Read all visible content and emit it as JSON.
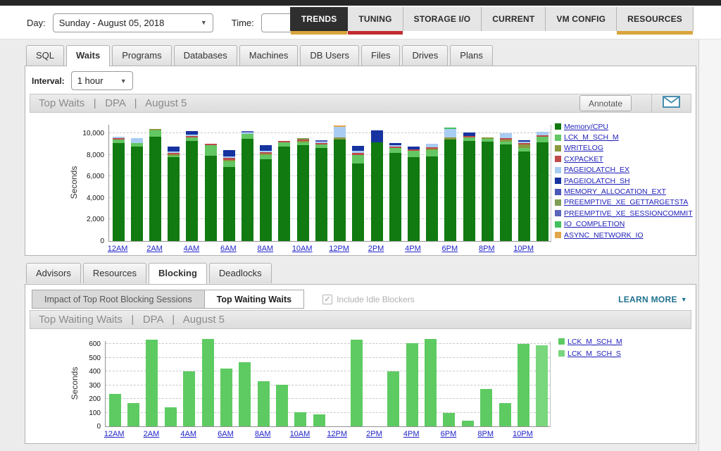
{
  "toolbar": {
    "day_label": "Day:",
    "day_value": "Sunday - August 05, 2018",
    "time_label": "Time:",
    "time_value": ""
  },
  "nav_tabs": [
    {
      "label": "TRENDS",
      "active": true,
      "underline": "#d9a43b"
    },
    {
      "label": "TUNING",
      "underline": "#c02b30"
    },
    {
      "label": "STORAGE I/O"
    },
    {
      "label": "CURRENT"
    },
    {
      "label": "VM CONFIG"
    },
    {
      "label": "RESOURCES",
      "underline": "#d9a43b"
    }
  ],
  "page_tabs": [
    {
      "label": "SQL"
    },
    {
      "label": "Waits",
      "active": true
    },
    {
      "label": "Programs"
    },
    {
      "label": "Databases"
    },
    {
      "label": "Machines"
    },
    {
      "label": "DB Users"
    },
    {
      "label": "Files"
    },
    {
      "label": "Drives"
    },
    {
      "label": "Plans"
    }
  ],
  "interval": {
    "label": "Interval:",
    "value": "1 hour"
  },
  "panel1": {
    "title": "Top Waits   |   DPA   |   August 5",
    "annotate_label": "Annotate",
    "mail_icon_color": "#4a8fb0"
  },
  "sub_tabs": [
    {
      "label": "Advisors"
    },
    {
      "label": "Resources"
    },
    {
      "label": "Blocking",
      "active": true
    },
    {
      "label": "Deadlocks"
    }
  ],
  "blocking_bar": {
    "toggle_buttons": [
      {
        "label": "Impact of Top Root Blocking Sessions"
      },
      {
        "label": "Top Waiting Waits",
        "active": true
      }
    ],
    "checkbox_label": "Include Idle Blockers",
    "checkbox_checked": true,
    "learn_more_label": "LEARN MORE"
  },
  "panel2": {
    "title": "Top Waiting Waits   |   DPA   |   August 5"
  },
  "chart_data": [
    {
      "type": "bar",
      "stacked": true,
      "title": "Top Waits | DPA | August 5",
      "ylabel": "Seconds",
      "ylim": [
        0,
        10800
      ],
      "yticks": [
        0,
        2000,
        4000,
        6000,
        8000,
        10000
      ],
      "grid": true,
      "legend_position": "right",
      "categories": [
        "12AM",
        "1AM",
        "2AM",
        "3AM",
        "4AM",
        "5AM",
        "6AM",
        "7AM",
        "8AM",
        "9AM",
        "10AM",
        "11AM",
        "12PM",
        "1PM",
        "2PM",
        "3PM",
        "4PM",
        "5PM",
        "6PM",
        "7PM",
        "8PM",
        "9PM",
        "10PM",
        "11PM"
      ],
      "tick_every": 2,
      "series": [
        {
          "name": "Memory/CPU",
          "color": "#117a11",
          "values": [
            9100,
            8750,
            9700,
            7750,
            9300,
            7900,
            6850,
            9500,
            7550,
            8750,
            8900,
            8650,
            9390,
            7200,
            9150,
            8200,
            7800,
            7850,
            9400,
            9300,
            9200,
            8950,
            8300,
            9150
          ]
        },
        {
          "name": "LCK_M_SCH_M",
          "color": "#63c763",
          "values": [
            300,
            300,
            600,
            150,
            350,
            1000,
            550,
            450,
            400,
            400,
            250,
            300,
            0,
            800,
            0,
            450,
            600,
            600,
            0,
            300,
            250,
            250,
            300,
            500
          ]
        },
        {
          "name": "WRITELOG",
          "color": "#8a9a40",
          "values": [
            0,
            0,
            150,
            100,
            0,
            0,
            100,
            0,
            100,
            0,
            100,
            0,
            200,
            0,
            0,
            0,
            0,
            150,
            200,
            0,
            150,
            180,
            350,
            0
          ]
        },
        {
          "name": "CXPACKET",
          "color": "#bf4a4a",
          "values": [
            100,
            0,
            0,
            100,
            150,
            80,
            170,
            0,
            130,
            80,
            150,
            120,
            0,
            200,
            0,
            150,
            150,
            120,
            0,
            100,
            0,
            100,
            130,
            100
          ]
        },
        {
          "name": "PAGEIOLATCH_EX",
          "color": "#a9cdf2",
          "values": [
            150,
            450,
            0,
            80,
            100,
            0,
            150,
            100,
            150,
            0,
            0,
            100,
            1000,
            200,
            0,
            150,
            0,
            350,
            800,
            0,
            0,
            450,
            100,
            300
          ]
        },
        {
          "name": "PAGEIOLATCH_SH",
          "color": "#16339f",
          "values": [
            0,
            0,
            0,
            450,
            300,
            0,
            600,
            0,
            550,
            0,
            0,
            0,
            0,
            450,
            1100,
            200,
            250,
            0,
            0,
            350,
            0,
            0,
            100,
            0
          ]
        },
        {
          "name": "MEMORY_ALLOCATION_EXT",
          "color": "#4c58b8",
          "values": [
            0,
            0,
            0,
            0,
            0,
            0,
            0,
            0,
            0,
            0,
            0,
            100,
            0,
            0,
            0,
            0,
            0,
            0,
            0,
            0,
            0,
            0,
            0,
            0
          ]
        },
        {
          "name": "PREEMPTIVE_XE_GETTARGETSTA",
          "color": "#7f9e53",
          "values": [
            0,
            0,
            0,
            0,
            0,
            0,
            0,
            0,
            0,
            0,
            80,
            0,
            0,
            0,
            0,
            0,
            0,
            0,
            0,
            0,
            0,
            0,
            0,
            0
          ]
        },
        {
          "name": "PREEMPTIVE_XE_SESSIONCOMMIT",
          "color": "#5a64bb",
          "values": [
            0,
            0,
            0,
            0,
            0,
            0,
            0,
            150,
            0,
            0,
            0,
            0,
            0,
            0,
            0,
            0,
            0,
            0,
            0,
            0,
            0,
            0,
            0,
            0
          ]
        },
        {
          "name": "IO_COMPLETION",
          "color": "#43bf5e",
          "values": [
            0,
            0,
            0,
            0,
            0,
            0,
            0,
            0,
            0,
            0,
            0,
            0,
            0,
            0,
            0,
            0,
            0,
            0,
            80,
            0,
            0,
            0,
            0,
            0
          ]
        },
        {
          "name": "ASYNC_NETWORK_IO",
          "color": "#e2a64a",
          "values": [
            0,
            0,
            0,
            0,
            0,
            0,
            0,
            0,
            0,
            0,
            0,
            0,
            60,
            0,
            0,
            0,
            0,
            0,
            0,
            0,
            0,
            0,
            0,
            0
          ]
        }
      ]
    },
    {
      "type": "bar",
      "stacked": true,
      "title": "Top Waiting Waits | DPA | August 5",
      "ylabel": "Seconds",
      "ylim": [
        0,
        690
      ],
      "yticks": [
        0,
        100,
        200,
        300,
        400,
        500,
        600
      ],
      "grid": true,
      "legend_position": "right",
      "categories": [
        "12AM",
        "1AM",
        "2AM",
        "3AM",
        "4AM",
        "5AM",
        "6AM",
        "7AM",
        "8AM",
        "9AM",
        "10AM",
        "11AM",
        "12PM",
        "1PM",
        "2PM",
        "3PM",
        "4PM",
        "5PM",
        "6PM",
        "7PM",
        "8PM",
        "9PM",
        "10PM",
        "11PM"
      ],
      "tick_every": 2,
      "series": [
        {
          "name": "LCK_M_SCH_M",
          "color": "#5ecb62",
          "values": [
            235,
            170,
            630,
            140,
            400,
            635,
            420,
            465,
            330,
            305,
            100,
            85,
            0,
            630,
            0,
            400,
            605,
            635,
            95,
            40,
            270,
            170,
            600,
            0
          ]
        },
        {
          "name": "LCK_M_SCH_S",
          "color": "#79d67d",
          "values": [
            0,
            0,
            0,
            0,
            0,
            0,
            0,
            0,
            0,
            0,
            0,
            0,
            0,
            0,
            0,
            0,
            0,
            0,
            0,
            0,
            0,
            0,
            0,
            590
          ]
        }
      ]
    }
  ]
}
